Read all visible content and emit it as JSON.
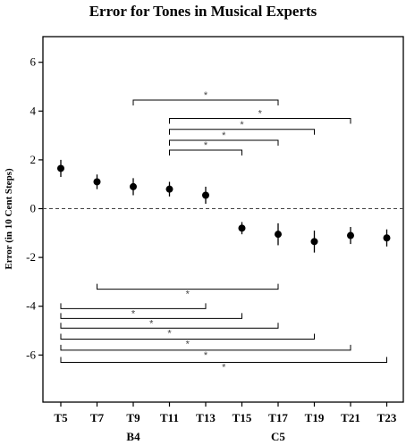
{
  "chart_data": {
    "type": "scatter",
    "title": "Error for Tones in Musical Experts",
    "xlabel": "",
    "ylabel": "Error (in 10 Cent Steps)",
    "ylim": [
      -8,
      6.5
    ],
    "yticks": [
      "6",
      "4",
      "2",
      "0",
      "-2",
      "-4",
      "-6"
    ],
    "categories": [
      "T5",
      "T7",
      "T9",
      "T11",
      "T13",
      "T15",
      "T17",
      "T19",
      "T21",
      "T23"
    ],
    "note_labels": [
      {
        "category": "T9",
        "text": "B4"
      },
      {
        "category": "T17",
        "text": "C5"
      }
    ],
    "values": [
      1.65,
      1.1,
      0.9,
      0.8,
      0.55,
      -0.8,
      -1.05,
      -1.35,
      -1.1,
      -1.2
    ],
    "error": [
      0.35,
      0.3,
      0.35,
      0.3,
      0.35,
      0.25,
      0.45,
      0.45,
      0.35,
      0.35
    ],
    "reference_line": 0,
    "significance_marker": "*",
    "brackets_top": [
      {
        "from": "T9",
        "to": "T17",
        "y": 4.45
      },
      {
        "from": "T11",
        "to": "T21",
        "y": 3.7
      },
      {
        "from": "T11",
        "to": "T19",
        "y": 3.25
      },
      {
        "from": "T11",
        "to": "T17",
        "y": 2.8
      },
      {
        "from": "T11",
        "to": "T15",
        "y": 2.4
      }
    ],
    "brackets_bottom": [
      {
        "from": "T7",
        "to": "T17",
        "y": -3.3
      },
      {
        "from": "T5",
        "to": "T13",
        "y": -4.1
      },
      {
        "from": "T5",
        "to": "T15",
        "y": -4.5
      },
      {
        "from": "T5",
        "to": "T17",
        "y": -4.9
      },
      {
        "from": "T5",
        "to": "T19",
        "y": -5.35
      },
      {
        "from": "T5",
        "to": "T21",
        "y": -5.8
      },
      {
        "from": "T5",
        "to": "T23",
        "y": -6.3
      }
    ],
    "grid": false
  }
}
